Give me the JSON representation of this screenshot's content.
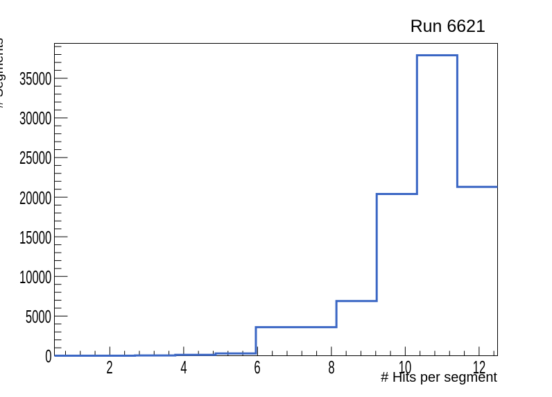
{
  "chart_data": {
    "type": "bar",
    "subtype": "step-histogram",
    "title": "Run 6621",
    "xlabel": "# Hits per segment",
    "ylabel": "# Segments",
    "bin_edges": [
      0.5,
      1.591,
      2.682,
      3.773,
      4.864,
      5.955,
      7.045,
      8.136,
      9.227,
      10.318,
      11.409,
      12.5
    ],
    "values": [
      0,
      0,
      30,
      110,
      280,
      3600,
      3600,
      6900,
      20400,
      37900,
      21300
    ],
    "xlim": [
      0.5,
      12.5
    ],
    "ylim": [
      0,
      39400
    ],
    "x_major_ticks": [
      2,
      4,
      6,
      8,
      10,
      12
    ],
    "x_tick_labels": [
      "2",
      "4",
      "6",
      "8",
      "10",
      "12"
    ],
    "x_minor_step": 0.4,
    "y_major_ticks": [
      0,
      5000,
      10000,
      15000,
      20000,
      25000,
      30000,
      35000
    ],
    "y_tick_labels": [
      "0",
      "5000",
      "10000",
      "15000",
      "20000",
      "25000",
      "30000",
      "35000"
    ],
    "y_minor_step": 1000,
    "grid": false,
    "line_color": "#3a66c4",
    "axis_color": "#000000",
    "background_color": "#ffffff"
  }
}
